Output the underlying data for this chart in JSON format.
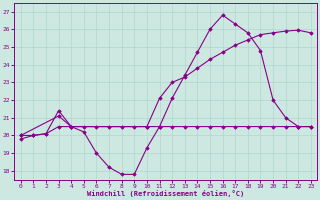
{
  "title": "",
  "xlabel": "Windchill (Refroidissement éolien,°C)",
  "bg_color": "#cce8e0",
  "grid_color": "#b0d8d0",
  "line_color": "#880088",
  "xlim": [
    -0.5,
    23.5
  ],
  "ylim": [
    17.5,
    27.5
  ],
  "yticks": [
    18,
    19,
    20,
    21,
    22,
    23,
    24,
    25,
    26,
    27
  ],
  "xticks": [
    0,
    1,
    2,
    3,
    4,
    5,
    6,
    7,
    8,
    9,
    10,
    11,
    12,
    13,
    14,
    15,
    16,
    17,
    18,
    19,
    20,
    21,
    22,
    23
  ],
  "windchill": {
    "x": [
      0,
      1,
      2,
      3,
      4,
      5,
      6,
      7,
      8,
      9,
      10,
      11,
      12,
      13,
      14,
      15,
      16,
      17,
      18,
      19,
      20,
      21,
      22,
      23
    ],
    "y": [
      19.8,
      20.0,
      20.1,
      21.4,
      20.5,
      20.2,
      19.0,
      18.2,
      17.8,
      17.8,
      19.3,
      20.5,
      22.1,
      23.4,
      24.7,
      26.0,
      26.8,
      26.3,
      25.8,
      24.8,
      22.0,
      21.0,
      20.5,
      20.5
    ]
  },
  "temp_line": {
    "x": [
      0,
      3,
      4,
      10,
      11,
      12,
      13,
      14,
      15,
      16,
      17,
      18,
      19,
      20,
      21,
      22,
      23
    ],
    "y": [
      20.0,
      21.1,
      20.5,
      20.5,
      22.1,
      23.0,
      23.3,
      23.8,
      24.3,
      24.7,
      25.1,
      25.4,
      25.7,
      25.8,
      25.9,
      25.95,
      25.8
    ]
  },
  "flat_line": {
    "x": [
      0,
      1,
      2,
      3,
      4,
      5,
      6,
      7,
      8,
      9,
      10,
      11,
      12,
      13,
      14,
      15,
      16,
      17,
      18,
      19,
      20,
      21,
      22,
      23
    ],
    "y": [
      20.0,
      20.0,
      20.1,
      20.5,
      20.5,
      20.5,
      20.5,
      20.5,
      20.5,
      20.5,
      20.5,
      20.5,
      20.5,
      20.5,
      20.5,
      20.5,
      20.5,
      20.5,
      20.5,
      20.5,
      20.5,
      20.5,
      20.5,
      20.5
    ]
  }
}
